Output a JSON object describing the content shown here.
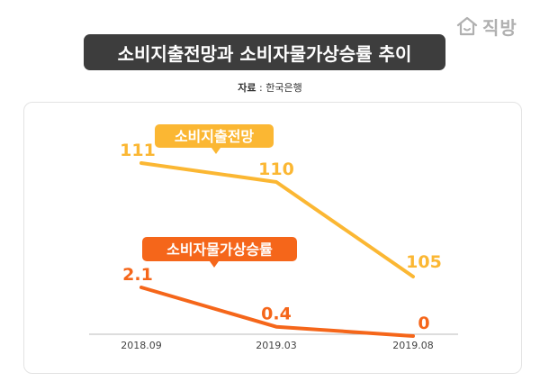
{
  "brand": {
    "name": "직방",
    "icon": "house-icon"
  },
  "title": "소비지출전망과 소비자물가상승률 추이",
  "source": {
    "label": "자료",
    "separator": " : ",
    "value": "한국은행"
  },
  "colors": {
    "spending": "#fbb733",
    "inflation": "#f5661a",
    "title_bg": "#3d3d3d",
    "axis": "#bbbbbb"
  },
  "chart_data": {
    "type": "line",
    "categories": [
      "2018.09",
      "2019.03",
      "2019.08"
    ],
    "series": [
      {
        "name": "소비지출전망",
        "values": [
          111,
          110,
          105
        ],
        "labels": [
          "111",
          "110",
          "105"
        ],
        "color": "#fbb733"
      },
      {
        "name": "소비자물가상승률",
        "values": [
          2.1,
          0.4,
          0
        ],
        "labels": [
          "2.1",
          "0.4",
          "0"
        ],
        "color": "#f5661a"
      }
    ],
    "legend": "inline callouts",
    "grid": false
  }
}
